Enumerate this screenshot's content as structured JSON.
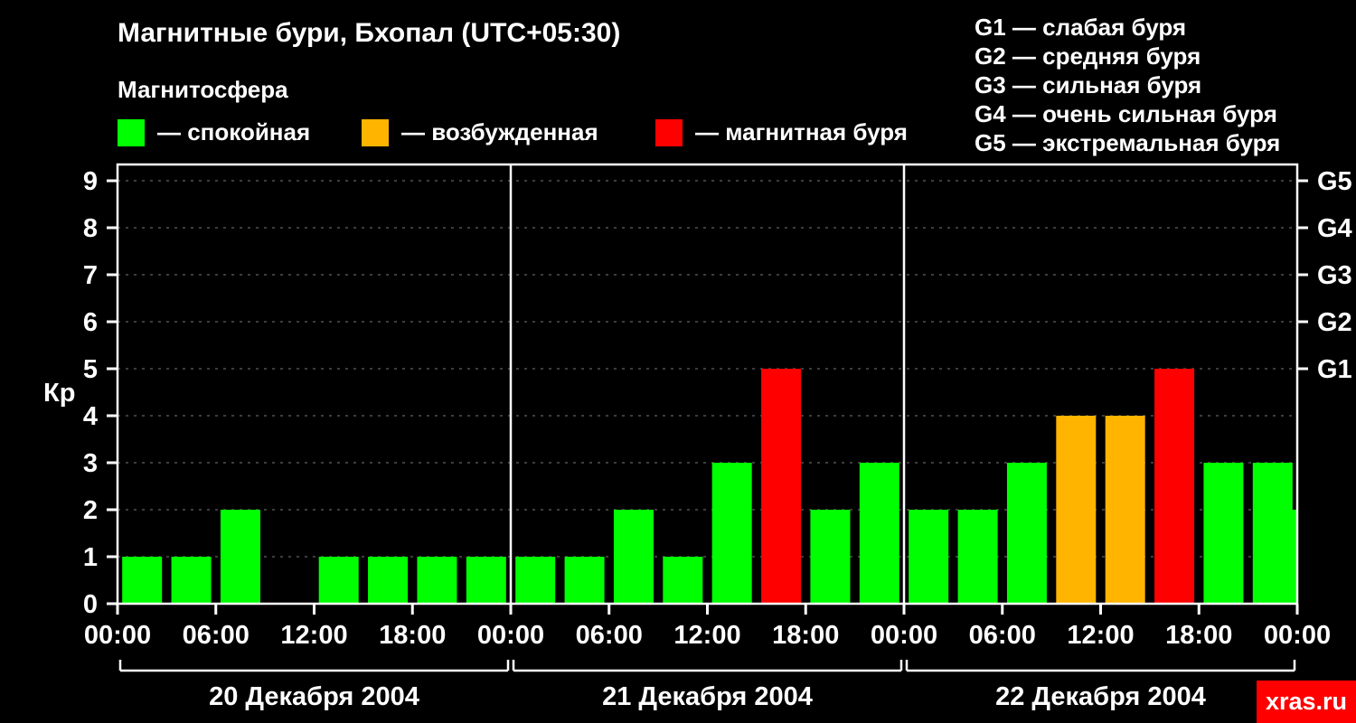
{
  "header": {
    "title": "Магнитные бури, Бхопал (UTC+05:30)",
    "subtitle": "Магнитосфера"
  },
  "legend": {
    "items": [
      {
        "key": "quiet",
        "label": "— спокойная",
        "color": "#00ff00"
      },
      {
        "key": "excited",
        "label": "— возбужденная",
        "color": "#ffb400"
      },
      {
        "key": "storm",
        "label": "— магнитная буря",
        "color": "#ff0000"
      }
    ]
  },
  "g_legend": {
    "lines": [
      "G1 — слабая буря",
      "G2 — средняя буря",
      "G3 — сильная буря",
      "G4 — очень сильная буря",
      "G5 — экстремальная буря"
    ]
  },
  "watermark": {
    "text": "xras.ru",
    "bg_color": "#ff0000"
  },
  "chart_data": {
    "type": "bar",
    "title": "Магнитные бури, Бхопал (UTC+05:30)",
    "ylabel": "Кр",
    "ylim": [
      0,
      9
    ],
    "y_ticks": [
      0,
      1,
      2,
      3,
      4,
      5,
      6,
      7,
      8,
      9
    ],
    "grid": "horizontal-dashed",
    "hours_per_bar": 3,
    "x_tick_labels": [
      "00:00",
      "06:00",
      "12:00",
      "18:00",
      "00:00",
      "06:00",
      "12:00",
      "18:00",
      "00:00",
      "06:00",
      "12:00",
      "18:00",
      "00:00"
    ],
    "right_axis": [
      {
        "kp": 5,
        "label": "G1"
      },
      {
        "kp": 6,
        "label": "G2"
      },
      {
        "kp": 7,
        "label": "G3"
      },
      {
        "kp": 8,
        "label": "G4"
      },
      {
        "kp": 9,
        "label": "G5"
      }
    ],
    "days": [
      {
        "date": "20 Декабря 2004",
        "kp_values": [
          1,
          1,
          2,
          0,
          1,
          1,
          1,
          1
        ]
      },
      {
        "date": "21 Декабря 2004",
        "kp_values": [
          1,
          1,
          2,
          1,
          3,
          5,
          2,
          3
        ]
      },
      {
        "date": "22 Декабря 2004",
        "kp_values": [
          2,
          2,
          3,
          4,
          4,
          5,
          3,
          3
        ]
      }
    ],
    "next_period_partial_value": 2,
    "color_rule": {
      "quiet_max_kp": 3,
      "excited_kp": 4,
      "storm_min_kp": 5
    },
    "colors": {
      "quiet": "#00ff00",
      "excited": "#ffb400",
      "storm": "#ff0000",
      "grid": "#7a7a7a",
      "axis": "#ffffff",
      "background": "#000000"
    }
  }
}
